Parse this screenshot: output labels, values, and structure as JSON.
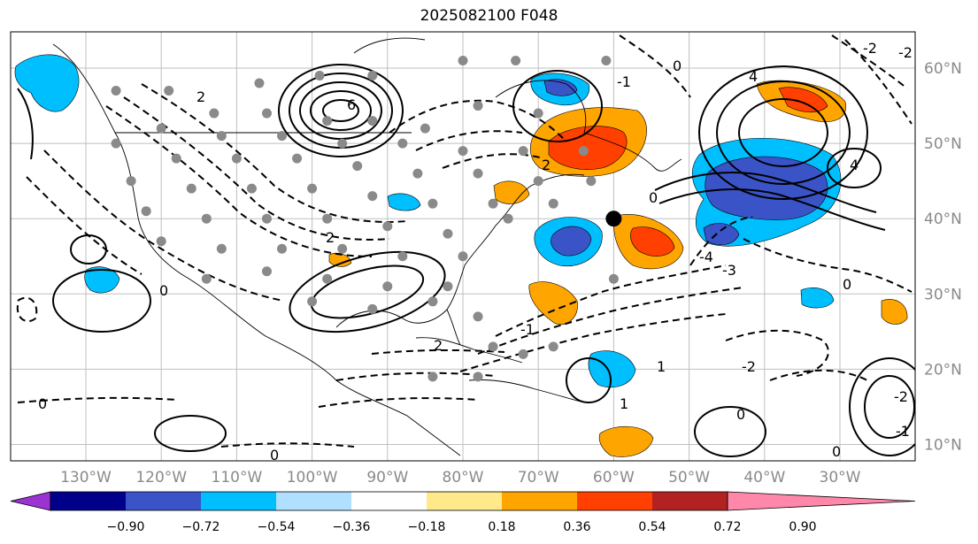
{
  "title": "2025082100 F048",
  "lat_ticks": [
    "60°N",
    "50°N",
    "40°N",
    "30°N",
    "20°N",
    "10°N"
  ],
  "lat_values": [
    60,
    50,
    40,
    30,
    20,
    10
  ],
  "lon_ticks": [
    "130°W",
    "120°W",
    "110°W",
    "100°W",
    "90°W",
    "80°W",
    "70°W",
    "60°W",
    "50°W",
    "40°W",
    "30°W"
  ],
  "lon_values": [
    -130,
    -120,
    -110,
    -100,
    -90,
    -80,
    -70,
    -60,
    -50,
    -40,
    -30
  ],
  "colorbar": {
    "labels": [
      "−0.90",
      "−0.72",
      "−0.54",
      "−0.36",
      "−0.18",
      "0.18",
      "0.36",
      "0.54",
      "0.72",
      "0.90"
    ],
    "values": [
      -0.9,
      -0.72,
      -0.54,
      -0.36,
      -0.18,
      0.18,
      0.36,
      0.54,
      0.72,
      0.9
    ],
    "colors": [
      "#9b32d2",
      "#00008b",
      "#3a54c8",
      "#00bfff",
      "#b0e0ff",
      "#ffffff",
      "#ffe98a",
      "#ffa500",
      "#ff4000",
      "#b22222",
      "#ff88aa"
    ]
  },
  "contour_labels": [
    "6",
    "2",
    "2",
    "4",
    "-4",
    "-3",
    "0",
    "-1",
    "1",
    "-2",
    "0",
    "-2",
    "0",
    "2",
    "-1",
    "0",
    "0",
    "0",
    "-1",
    "4",
    "2",
    "0",
    "0",
    "-2",
    "1",
    "-2"
  ],
  "colors": {
    "neg_strong": "#3a54c8",
    "neg_mid": "#00bfff",
    "pos_mid": "#ffa500",
    "pos_strong": "#ff4000",
    "dots": "#8a8a8a"
  },
  "station_dots": [
    [
      -80,
      61
    ],
    [
      -73,
      61
    ],
    [
      -61,
      61
    ],
    [
      -92,
      59
    ],
    [
      -99,
      59
    ],
    [
      -107,
      58
    ],
    [
      -119,
      57
    ],
    [
      -126,
      57
    ],
    [
      -113,
      54
    ],
    [
      -106,
      54
    ],
    [
      -98,
      53
    ],
    [
      -92,
      53
    ],
    [
      -85,
      52
    ],
    [
      -78,
      55
    ],
    [
      -70,
      54
    ],
    [
      -120,
      52
    ],
    [
      -112,
      51
    ],
    [
      -104,
      51
    ],
    [
      -96,
      50
    ],
    [
      -88,
      50
    ],
    [
      -80,
      49
    ],
    [
      -72,
      49
    ],
    [
      -64,
      49
    ],
    [
      -126,
      50
    ],
    [
      -118,
      48
    ],
    [
      -110,
      48
    ],
    [
      -102,
      48
    ],
    [
      -94,
      47
    ],
    [
      -86,
      46
    ],
    [
      -78,
      46
    ],
    [
      -70,
      45
    ],
    [
      -63,
      45
    ],
    [
      -124,
      45
    ],
    [
      -116,
      44
    ],
    [
      -108,
      44
    ],
    [
      -100,
      44
    ],
    [
      -92,
      43
    ],
    [
      -84,
      42
    ],
    [
      -76,
      42
    ],
    [
      -68,
      42
    ],
    [
      -122,
      41
    ],
    [
      -114,
      40
    ],
    [
      -106,
      40
    ],
    [
      -98,
      40
    ],
    [
      -90,
      39
    ],
    [
      -82,
      38
    ],
    [
      -74,
      40
    ],
    [
      -120,
      37
    ],
    [
      -112,
      36
    ],
    [
      -104,
      36
    ],
    [
      -96,
      36
    ],
    [
      -88,
      35
    ],
    [
      -80,
      35
    ],
    [
      -114,
      32
    ],
    [
      -106,
      33
    ],
    [
      -98,
      32
    ],
    [
      -90,
      31
    ],
    [
      -82,
      31
    ],
    [
      -100,
      29
    ],
    [
      -92,
      28
    ],
    [
      -84,
      29
    ],
    [
      -78,
      27
    ],
    [
      -76,
      23
    ],
    [
      -72,
      22
    ],
    [
      -68,
      23
    ],
    [
      -60,
      32
    ],
    [
      -84,
      19
    ],
    [
      -78,
      19
    ]
  ],
  "front_dot": [
    -60,
    40
  ]
}
